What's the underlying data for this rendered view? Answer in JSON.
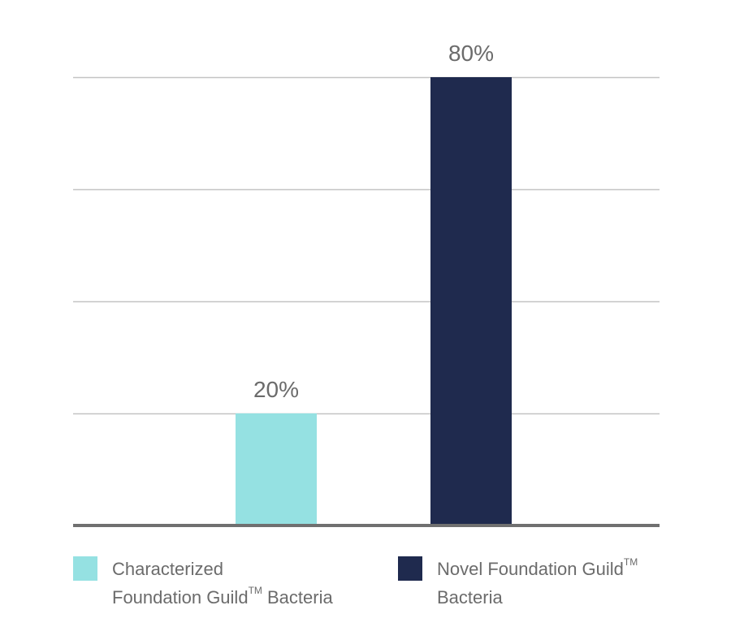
{
  "chart_data": {
    "type": "bar",
    "categories": [
      "Characterized Foundation Guild™ Bacteria",
      "Novel Foundation Guild™ Bacteria"
    ],
    "values": [
      20,
      80
    ],
    "value_labels": [
      "20%",
      "80%"
    ],
    "colors": [
      "#95e1e2",
      "#1f2a4e"
    ],
    "ylim": [
      0,
      80
    ],
    "yticks": [
      0,
      20,
      40,
      60,
      80
    ],
    "grid": true,
    "legend_position": "bottom"
  },
  "legend": [
    {
      "line1": "Characterized",
      "line2_pre": "Foundation Guild",
      "tm": "TM",
      "line2_post": " Bacteria"
    },
    {
      "line1": "Novel Foundation Guild",
      "tm": "TM",
      "line2": "Bacteria"
    }
  ]
}
